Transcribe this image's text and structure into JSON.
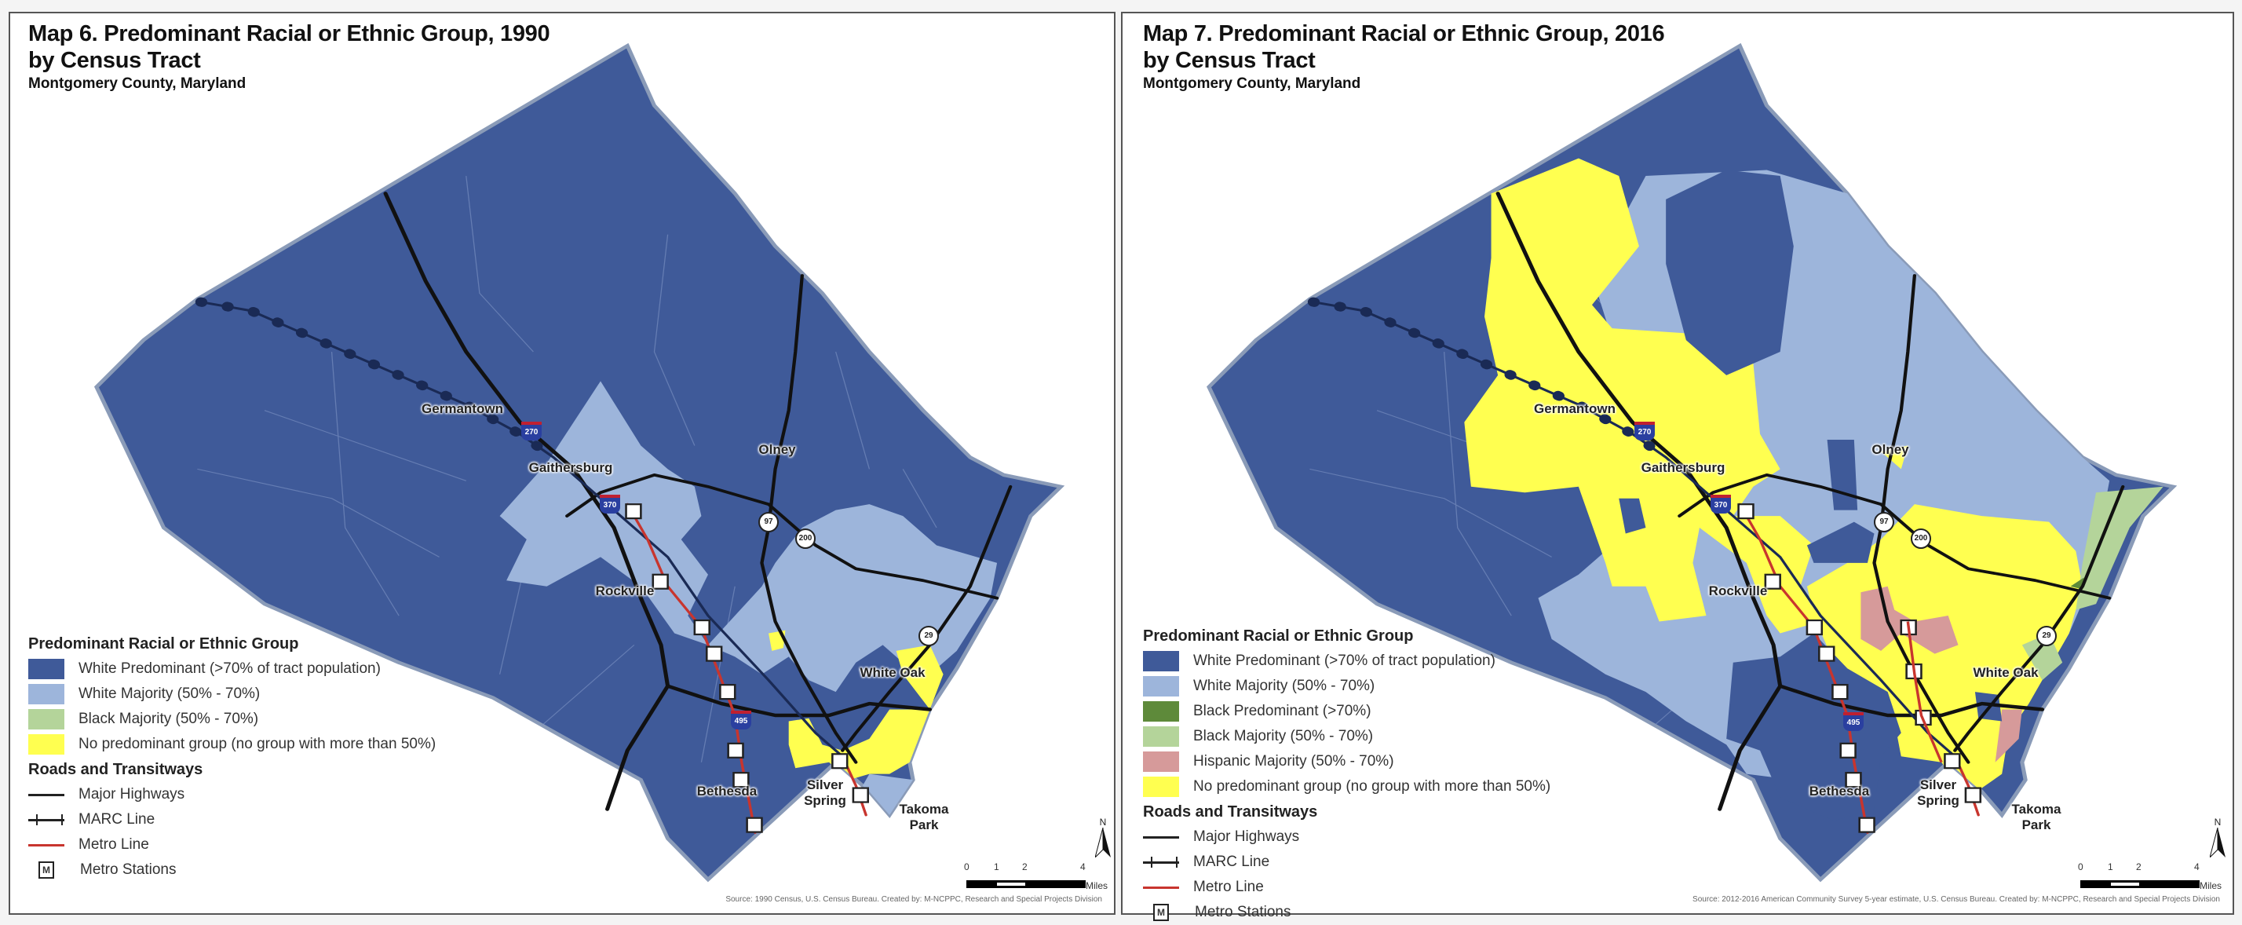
{
  "maps": [
    {
      "title_line1": "Map 6. Predominant Racial or Ethnic Group, 1990",
      "title_line2": "by Census Tract",
      "subtitle": "Montgomery County, Maryland",
      "legend": {
        "title": "Predominant Racial or Ethnic Group",
        "categories": [
          {
            "label": "White Predominant (>70% of tract population)",
            "color": "#3f5a99"
          },
          {
            "label": "White Majority (50% - 70%)",
            "color": "#9db5db"
          },
          {
            "label": "Black Majority (50% - 70%)",
            "color": "#b4d49a"
          },
          {
            "label": "No predominant group (no group with more than 50%)",
            "color": "#ffff50"
          }
        ],
        "roads_title": "Roads and Transitways",
        "roads": [
          "Major Highways",
          "MARC Line",
          "Metro Line",
          "Metro Stations"
        ],
        "metro_symbol": "M"
      },
      "places": [
        "Germantown",
        "Gaithersburg",
        "Olney",
        "Rockville",
        "White Oak",
        "Bethesda",
        "Silver Spring",
        "Takoma Park"
      ],
      "shields": [
        "270",
        "370",
        "495",
        "97",
        "200",
        "29"
      ],
      "scale": {
        "ticks": [
          "0",
          "1",
          "2",
          "4"
        ],
        "unit": "Miles"
      },
      "north": "N",
      "source": "Source: 1990 Census, U.S. Census Bureau. Created by: M-NCPPC, Research and Special Projects Division"
    },
    {
      "title_line1": "Map 7. Predominant Racial or Ethnic Group, 2016",
      "title_line2": "by Census Tract",
      "subtitle": "Montgomery County, Maryland",
      "legend": {
        "title": "Predominant Racial or Ethnic Group",
        "categories": [
          {
            "label": "White Predominant (>70% of tract population)",
            "color": "#3f5a99"
          },
          {
            "label": "White Majority (50% - 70%)",
            "color": "#9db5db"
          },
          {
            "label": "Black Predominant (>70%)",
            "color": "#5e8a3a"
          },
          {
            "label": "Black Majority (50% - 70%)",
            "color": "#b4d49a"
          },
          {
            "label": "Hispanic Majority (50% - 70%)",
            "color": "#d69a9a"
          },
          {
            "label": "No predominant group (no group with more than 50%)",
            "color": "#ffff50"
          }
        ],
        "roads_title": "Roads and Transitways",
        "roads": [
          "Major Highways",
          "MARC Line",
          "Metro Line",
          "Metro Stations"
        ],
        "metro_symbol": "M"
      },
      "places": [
        "Germantown",
        "Gaithersburg",
        "Olney",
        "Rockville",
        "White Oak",
        "Bethesda",
        "Silver Spring",
        "Takoma Park"
      ],
      "shields": [
        "270",
        "370",
        "495",
        "97",
        "200",
        "29"
      ],
      "scale": {
        "ticks": [
          "0",
          "1",
          "2",
          "4"
        ],
        "unit": "Miles"
      },
      "north": "N",
      "source": "Source: 2012-2016 American Community Survey 5-year estimate, U.S. Census Bureau. Created by: M-NCPPC, Research and Special Projects Division"
    }
  ]
}
